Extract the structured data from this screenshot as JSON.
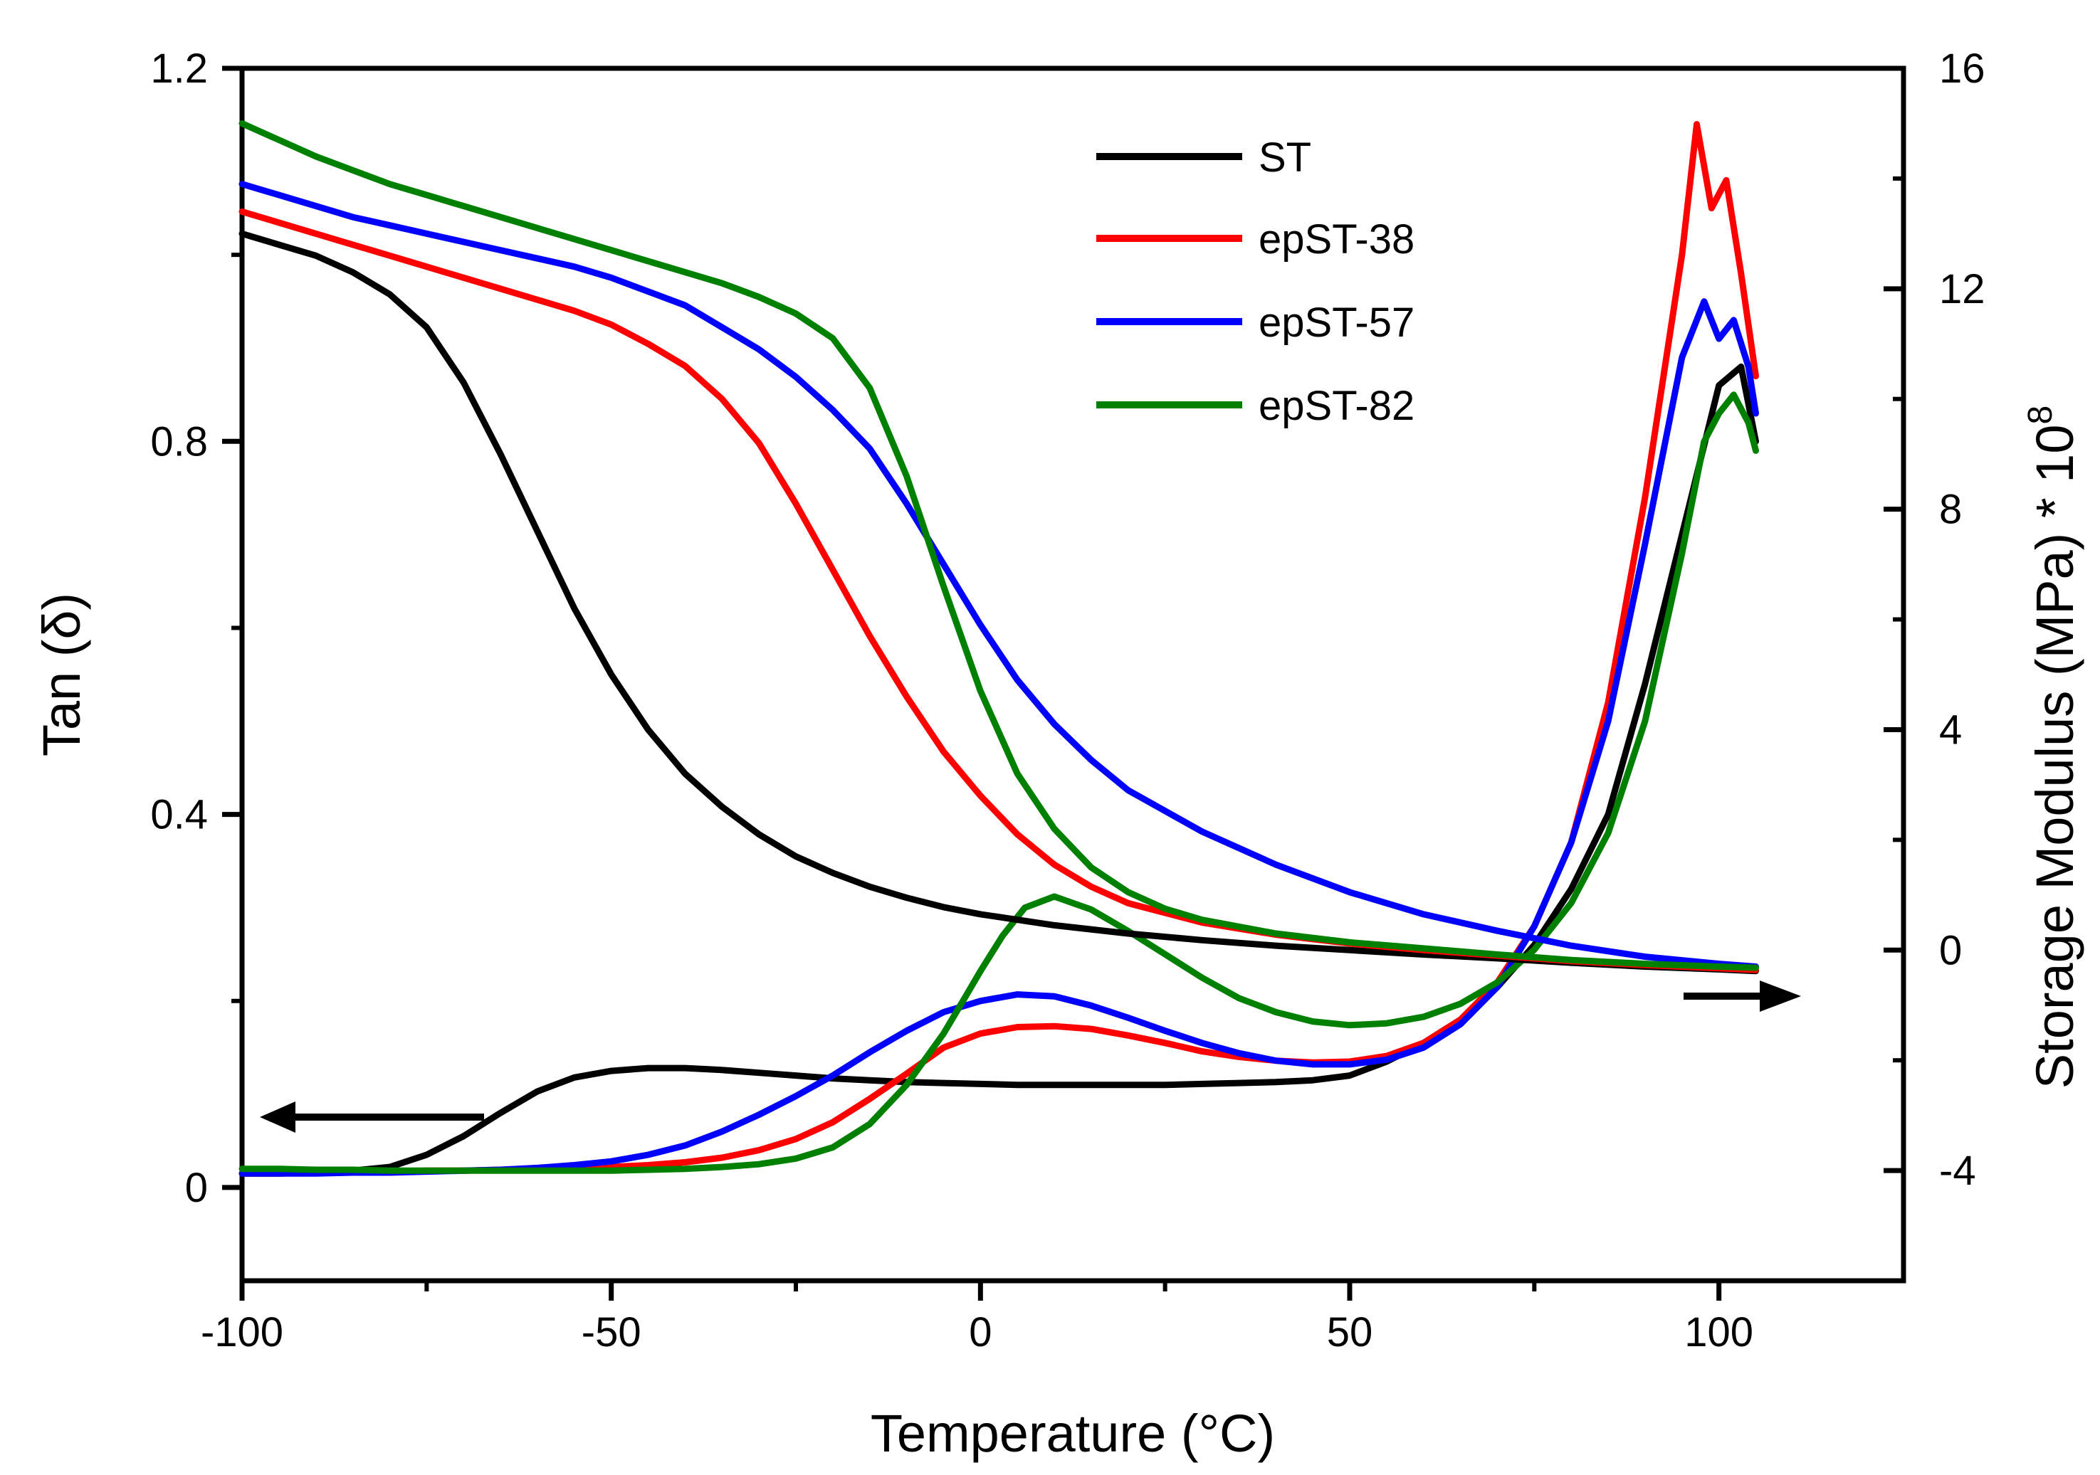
{
  "chart_data": {
    "type": "line",
    "xlabel": "Temperature (°C)",
    "ylabel": "Tan (δ)",
    "y2label_main": "Storage Modulus (MPa) * 10",
    "y2label_exponent": "8",
    "xlim": [
      -100,
      125
    ],
    "ylim": [
      -0.1,
      1.2
    ],
    "y2lim": [
      -6,
      16
    ],
    "x_ticks": [
      -100,
      -50,
      0,
      50,
      100
    ],
    "x_tick_labels": [
      "-100",
      "-50",
      "0",
      "50",
      "100"
    ],
    "y_ticks": [
      0,
      0.4,
      0.8,
      1.2
    ],
    "y_tick_labels": [
      "0",
      "0.4",
      "0.8",
      "1.2"
    ],
    "y2_ticks": [
      -4,
      0,
      4,
      8,
      12,
      16
    ],
    "y2_tick_labels": [
      "-4",
      "0",
      "4",
      "8",
      "12",
      "16"
    ],
    "grid": false,
    "legend_position": "top-right",
    "arrows": [
      {
        "name": "left-axis-arrow",
        "direction": "left",
        "meaning": "tan delta curves"
      },
      {
        "name": "right-axis-arrow",
        "direction": "right",
        "meaning": "storage modulus curves"
      }
    ],
    "series": [
      {
        "name": "ST",
        "color": "#000000",
        "axis": "tan_delta",
        "x": [
          -100,
          -95,
          -90,
          -85,
          -80,
          -75,
          -70,
          -65,
          -60,
          -55,
          -50,
          -45,
          -40,
          -35,
          -30,
          -25,
          -20,
          -15,
          -10,
          -5,
          0,
          5,
          10,
          15,
          20,
          25,
          30,
          35,
          40,
          45,
          50,
          55,
          60,
          65,
          70,
          75,
          80,
          85,
          90,
          95,
          100,
          103,
          105
        ],
        "y": [
          0.015,
          0.015,
          0.016,
          0.018,
          0.022,
          0.035,
          0.055,
          0.08,
          0.103,
          0.118,
          0.125,
          0.128,
          0.128,
          0.126,
          0.123,
          0.12,
          0.117,
          0.115,
          0.113,
          0.112,
          0.111,
          0.11,
          0.11,
          0.11,
          0.11,
          0.11,
          0.111,
          0.112,
          0.113,
          0.115,
          0.12,
          0.135,
          0.155,
          0.18,
          0.215,
          0.26,
          0.32,
          0.4,
          0.54,
          0.7,
          0.86,
          0.88,
          0.8
        ]
      },
      {
        "name": "epST-38",
        "color": "#ff0000",
        "axis": "tan_delta",
        "x": [
          -100,
          -95,
          -90,
          -85,
          -80,
          -75,
          -70,
          -65,
          -60,
          -55,
          -50,
          -45,
          -40,
          -35,
          -30,
          -25,
          -20,
          -15,
          -10,
          -5,
          0,
          5,
          10,
          15,
          20,
          25,
          30,
          35,
          40,
          45,
          50,
          55,
          60,
          65,
          70,
          75,
          80,
          85,
          90,
          95,
          97,
          99,
          101,
          103,
          105
        ],
        "y": [
          0.015,
          0.015,
          0.016,
          0.016,
          0.017,
          0.018,
          0.018,
          0.019,
          0.02,
          0.021,
          0.022,
          0.024,
          0.027,
          0.032,
          0.04,
          0.052,
          0.07,
          0.095,
          0.122,
          0.15,
          0.165,
          0.172,
          0.173,
          0.17,
          0.163,
          0.155,
          0.146,
          0.14,
          0.136,
          0.134,
          0.135,
          0.141,
          0.155,
          0.18,
          0.22,
          0.28,
          0.37,
          0.52,
          0.74,
          1.0,
          1.14,
          1.05,
          1.08,
          0.98,
          0.87
        ]
      },
      {
        "name": "epST-57",
        "color": "#0000ff",
        "axis": "tan_delta",
        "x": [
          -100,
          -95,
          -90,
          -85,
          -80,
          -75,
          -70,
          -65,
          -60,
          -55,
          -50,
          -45,
          -40,
          -35,
          -30,
          -25,
          -20,
          -15,
          -10,
          -5,
          0,
          5,
          10,
          15,
          20,
          25,
          30,
          35,
          40,
          45,
          50,
          55,
          60,
          65,
          70,
          75,
          80,
          85,
          90,
          95,
          98,
          100,
          102,
          104,
          105
        ],
        "y": [
          0.015,
          0.015,
          0.015,
          0.016,
          0.016,
          0.017,
          0.018,
          0.019,
          0.021,
          0.024,
          0.028,
          0.035,
          0.045,
          0.06,
          0.078,
          0.098,
          0.12,
          0.145,
          0.168,
          0.188,
          0.2,
          0.207,
          0.205,
          0.195,
          0.182,
          0.168,
          0.155,
          0.144,
          0.136,
          0.132,
          0.132,
          0.137,
          0.15,
          0.175,
          0.215,
          0.28,
          0.37,
          0.5,
          0.69,
          0.89,
          0.95,
          0.91,
          0.93,
          0.88,
          0.83
        ]
      },
      {
        "name": "epST-82",
        "color": "#008000",
        "axis": "tan_delta",
        "x": [
          -100,
          -95,
          -90,
          -85,
          -80,
          -75,
          -70,
          -65,
          -60,
          -55,
          -50,
          -45,
          -40,
          -35,
          -30,
          -25,
          -20,
          -15,
          -10,
          -5,
          -2,
          0,
          3,
          6,
          10,
          15,
          20,
          25,
          30,
          35,
          40,
          45,
          50,
          55,
          60,
          65,
          70,
          75,
          80,
          85,
          90,
          95,
          98,
          100,
          102,
          104,
          105
        ],
        "y": [
          0.02,
          0.02,
          0.019,
          0.019,
          0.018,
          0.018,
          0.018,
          0.018,
          0.018,
          0.018,
          0.018,
          0.019,
          0.02,
          0.022,
          0.025,
          0.031,
          0.043,
          0.068,
          0.11,
          0.165,
          0.205,
          0.232,
          0.27,
          0.3,
          0.312,
          0.298,
          0.275,
          0.25,
          0.225,
          0.203,
          0.188,
          0.178,
          0.174,
          0.176,
          0.183,
          0.197,
          0.22,
          0.255,
          0.305,
          0.38,
          0.5,
          0.68,
          0.8,
          0.83,
          0.85,
          0.82,
          0.79
        ]
      },
      {
        "name": "ST",
        "color": "#000000",
        "axis": "storage_modulus",
        "x": [
          -100,
          -95,
          -90,
          -85,
          -80,
          -75,
          -70,
          -65,
          -60,
          -55,
          -50,
          -45,
          -40,
          -35,
          -30,
          -25,
          -20,
          -15,
          -10,
          -5,
          0,
          10,
          20,
          30,
          40,
          50,
          60,
          70,
          80,
          90,
          100,
          105
        ],
        "y": [
          13.0,
          12.8,
          12.6,
          12.3,
          11.9,
          11.3,
          10.3,
          9.0,
          7.6,
          6.2,
          5.0,
          4.0,
          3.2,
          2.6,
          2.1,
          1.7,
          1.4,
          1.15,
          0.95,
          0.78,
          0.65,
          0.45,
          0.3,
          0.18,
          0.08,
          0.0,
          -0.08,
          -0.15,
          -0.23,
          -0.3,
          -0.35,
          -0.38
        ]
      },
      {
        "name": "epST-38",
        "color": "#ff0000",
        "axis": "storage_modulus",
        "x": [
          -100,
          -95,
          -90,
          -85,
          -80,
          -75,
          -70,
          -65,
          -60,
          -55,
          -50,
          -45,
          -40,
          -35,
          -30,
          -25,
          -20,
          -15,
          -10,
          -5,
          0,
          5,
          10,
          15,
          20,
          30,
          40,
          50,
          60,
          70,
          80,
          90,
          100,
          105
        ],
        "y": [
          13.4,
          13.2,
          13.0,
          12.8,
          12.6,
          12.4,
          12.2,
          12.0,
          11.8,
          11.6,
          11.35,
          11.0,
          10.6,
          10.0,
          9.2,
          8.1,
          6.9,
          5.7,
          4.6,
          3.6,
          2.8,
          2.1,
          1.55,
          1.15,
          0.85,
          0.5,
          0.28,
          0.12,
          0.0,
          -0.1,
          -0.2,
          -0.27,
          -0.33,
          -0.36
        ]
      },
      {
        "name": "epST-57",
        "color": "#0000ff",
        "axis": "storage_modulus",
        "x": [
          -100,
          -95,
          -90,
          -85,
          -80,
          -75,
          -70,
          -65,
          -60,
          -55,
          -50,
          -45,
          -40,
          -35,
          -30,
          -25,
          -20,
          -15,
          -10,
          -5,
          0,
          5,
          10,
          15,
          20,
          30,
          40,
          50,
          60,
          70,
          80,
          90,
          100,
          105
        ],
        "y": [
          13.9,
          13.7,
          13.5,
          13.3,
          13.15,
          13.0,
          12.85,
          12.7,
          12.55,
          12.4,
          12.2,
          11.95,
          11.7,
          11.3,
          10.9,
          10.4,
          9.8,
          9.1,
          8.1,
          7.0,
          5.9,
          4.9,
          4.1,
          3.45,
          2.9,
          2.15,
          1.55,
          1.05,
          0.65,
          0.35,
          0.08,
          -0.12,
          -0.25,
          -0.3
        ]
      },
      {
        "name": "epST-82",
        "color": "#008000",
        "axis": "storage_modulus",
        "x": [
          -100,
          -95,
          -90,
          -85,
          -80,
          -75,
          -70,
          -65,
          -60,
          -55,
          -50,
          -45,
          -40,
          -35,
          -30,
          -25,
          -20,
          -15,
          -10,
          -5,
          0,
          5,
          10,
          15,
          20,
          25,
          30,
          40,
          50,
          60,
          70,
          80,
          90,
          100,
          105
        ],
        "y": [
          15.0,
          14.7,
          14.4,
          14.15,
          13.9,
          13.7,
          13.5,
          13.3,
          13.1,
          12.9,
          12.7,
          12.5,
          12.3,
          12.1,
          11.85,
          11.55,
          11.1,
          10.2,
          8.6,
          6.6,
          4.7,
          3.2,
          2.2,
          1.5,
          1.05,
          0.75,
          0.55,
          0.3,
          0.14,
          0.03,
          -0.08,
          -0.18,
          -0.25,
          -0.3,
          -0.32
        ]
      }
    ]
  }
}
